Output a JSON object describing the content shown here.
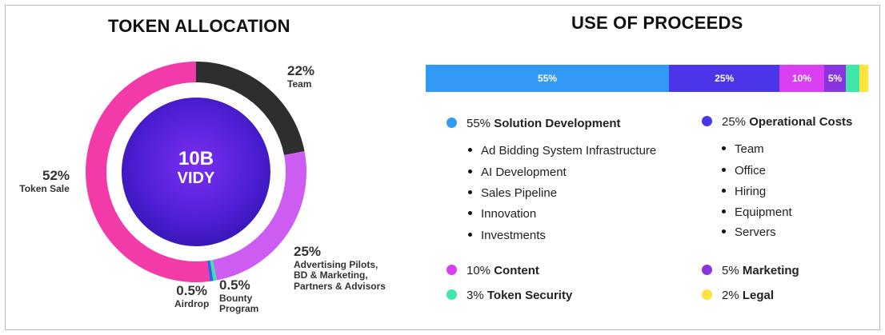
{
  "chart_data": [
    {
      "type": "pie",
      "title": "TOKEN ALLOCATION",
      "center_label": [
        "10B",
        "VIDY"
      ],
      "slices": [
        {
          "pct_label": "22%",
          "name": "Team",
          "value": 22,
          "color": "#2e2e2e"
        },
        {
          "pct_label": "25%",
          "name_lines": [
            "Advertising Pilots,",
            "BD & Marketing,",
            "Partners & Advisors"
          ],
          "value": 25,
          "color": "#cc5cf2"
        },
        {
          "pct_label": "0.5%",
          "name_lines": [
            "Bounty",
            "Program"
          ],
          "value": 0.5,
          "color": "#3ee0a8"
        },
        {
          "pct_label": "0.5%",
          "name": "Airdrop",
          "value": 0.5,
          "color": "#2d63e6"
        },
        {
          "pct_label": "52%",
          "name": "Token Sale",
          "value": 52,
          "color": "#f23aa8"
        }
      ]
    },
    {
      "type": "bar",
      "title": "USE OF PROCEEDS",
      "segments": [
        {
          "label": "55%",
          "value": 55,
          "color": "#3299f5"
        },
        {
          "label": "25%",
          "value": 25,
          "color": "#4a35e8"
        },
        {
          "label": "10%",
          "value": 10,
          "color": "#d93ef0"
        },
        {
          "label": "5%",
          "value": 5,
          "color": "#8a33e0"
        },
        {
          "label": "",
          "value": 3,
          "color": "#3fe8a8"
        },
        {
          "label": "",
          "value": 2,
          "color": "#ffe33a"
        }
      ]
    }
  ],
  "proceeds": {
    "solution": {
      "pct": "55%",
      "name": "Solution Development",
      "color": "#3299f5",
      "items": [
        "Ad Bidding System Infrastructure",
        "AI Development",
        "Sales Pipeline",
        "Innovation",
        "Investments"
      ]
    },
    "operational": {
      "pct": "25%",
      "name": "Operational Costs",
      "color": "#4a35e8",
      "items": [
        "Team",
        "Office",
        "Hiring",
        "Equipment",
        "Servers"
      ]
    },
    "content": {
      "pct": "10%",
      "name": "Content",
      "color": "#d93ef0"
    },
    "marketing": {
      "pct": "5%",
      "name": "Marketing",
      "color": "#8a33e0"
    },
    "security": {
      "pct": "3%",
      "name": "Token Security",
      "color": "#3fe8a8"
    },
    "legal": {
      "pct": "2%",
      "name": "Legal",
      "color": "#ffe33a"
    }
  }
}
